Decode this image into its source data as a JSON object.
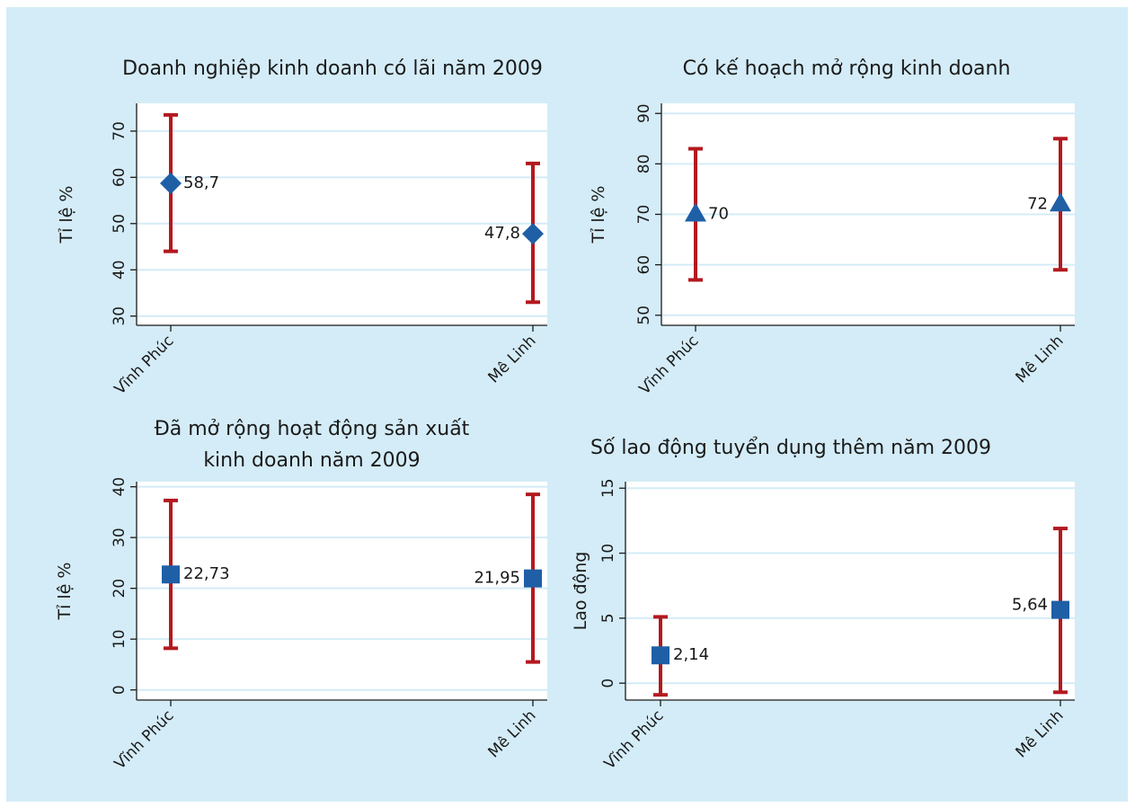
{
  "colors": {
    "background": "#d4ecf7",
    "plot_area": "#ffffff",
    "gridline": "#d4ecf7",
    "marker": "#1f5fa6",
    "error_bar": "#b3191f"
  },
  "chart_data": [
    {
      "type": "errorbar",
      "title": [
        "Doanh nghiệp kinh doanh có lãi năm 2009"
      ],
      "ylabel": "Tỉ lệ %",
      "categories": [
        "Vĩnh Phúc",
        "Mê Linh"
      ],
      "values": [
        58.7,
        47.8
      ],
      "lower": [
        44,
        33
      ],
      "upper": [
        73.5,
        63
      ],
      "value_labels": [
        "58,7",
        "47,8"
      ],
      "ylim": [
        28,
        76
      ],
      "yticks": [
        30,
        40,
        50,
        60,
        70
      ],
      "marker": "diamond",
      "grid": true
    },
    {
      "type": "errorbar",
      "title": [
        "Có kế hoạch mở rộng kinh doanh"
      ],
      "ylabel": "Tỉ lệ %",
      "categories": [
        "Vĩnh Phúc",
        "Mê Linh"
      ],
      "values": [
        70,
        72
      ],
      "lower": [
        57,
        59
      ],
      "upper": [
        83,
        85
      ],
      "value_labels": [
        "70",
        "72"
      ],
      "ylim": [
        48,
        92
      ],
      "yticks": [
        50,
        60,
        70,
        80,
        90
      ],
      "marker": "triangle",
      "grid": true
    },
    {
      "type": "errorbar",
      "title": [
        "Đã mở rộng hoạt động sản xuất",
        "kinh doanh năm 2009"
      ],
      "ylabel": "Tỉ lệ %",
      "categories": [
        "Vĩnh Phúc",
        "Mê Linh"
      ],
      "values": [
        22.73,
        21.95
      ],
      "lower": [
        8.2,
        5.5
      ],
      "upper": [
        37.3,
        38.5
      ],
      "value_labels": [
        "22,73",
        "21,95"
      ],
      "ylim": [
        -2,
        41
      ],
      "yticks": [
        0,
        10,
        20,
        30,
        40
      ],
      "marker": "square",
      "grid": true
    },
    {
      "type": "errorbar",
      "title": [
        "Số lao động tuyển dụng thêm năm 2009"
      ],
      "ylabel": "Lao động",
      "categories": [
        "Vĩnh Phúc",
        "Mê Linh"
      ],
      "values": [
        2.14,
        5.64
      ],
      "lower": [
        -0.9,
        -0.7
      ],
      "upper": [
        5.1,
        11.9
      ],
      "value_labels": [
        "2,14",
        "5,64"
      ],
      "ylim": [
        -1.3,
        15.5
      ],
      "yticks": [
        0,
        5,
        10,
        15
      ],
      "marker": "square",
      "grid": true
    }
  ]
}
